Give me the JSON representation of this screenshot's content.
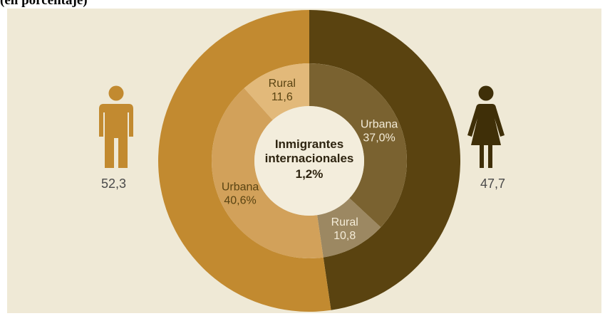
{
  "caption": "(en porcentaje)",
  "chart_data": {
    "type": "pie",
    "center_label": [
      "Inmigrantes",
      "internacionales",
      "1,2%"
    ],
    "outer_ring": [
      {
        "name": "hombres",
        "value": 52.3,
        "label": "52,3",
        "color": "#c28a30"
      },
      {
        "name": "mujeres",
        "value": 47.7,
        "label": "47,7",
        "color": "#5a4310"
      }
    ],
    "inner_ring": [
      {
        "group": "hombres",
        "area_label": "Rural",
        "value_label": "11,6",
        "value": 11.6,
        "color": "#e2b97a"
      },
      {
        "group": "hombres",
        "area_label": "Urbana",
        "value_label": "40,6%",
        "value": 40.6,
        "color": "#d2a15a"
      },
      {
        "group": "mujeres",
        "area_label": "Urbana",
        "value_label": "37,0%",
        "value": 37.0,
        "color": "#7a6230"
      },
      {
        "group": "mujeres",
        "area_label": "Rural",
        "value_label": "10,8",
        "value": 10.8,
        "color": "#9c8862"
      }
    ],
    "colors": {
      "background": "#efe9d6",
      "center": "#f3eddc",
      "man_icon": "#c28a30",
      "woman_icon": "#3f2f08"
    }
  }
}
